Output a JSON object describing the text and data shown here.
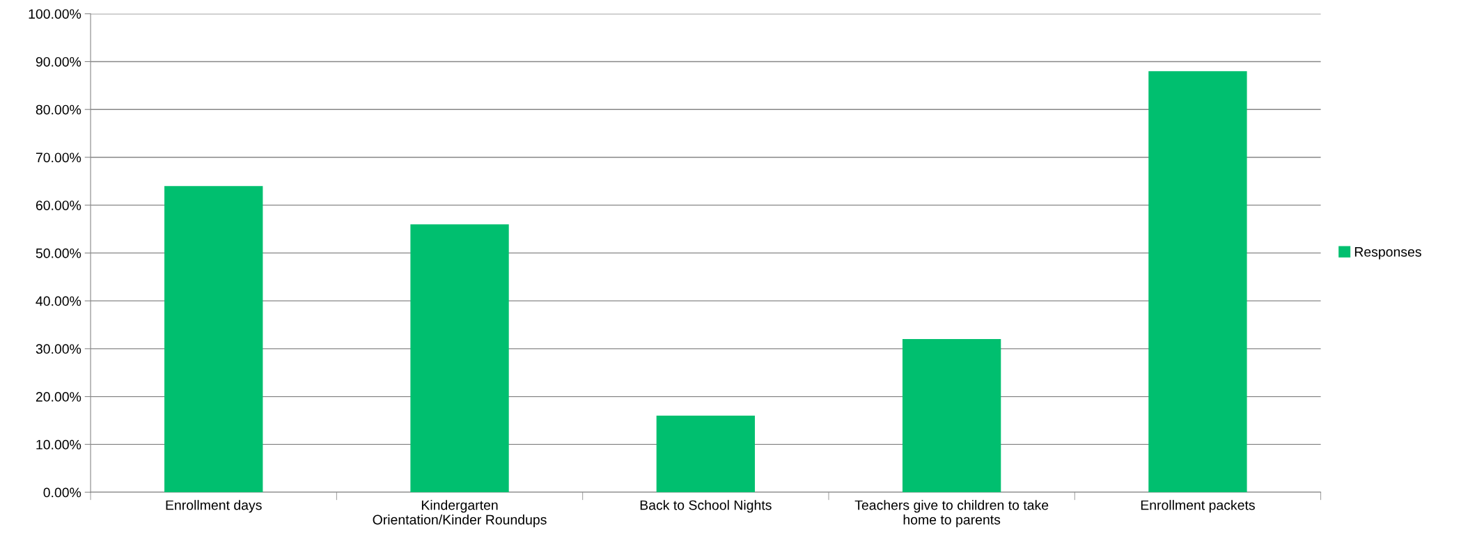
{
  "chart_data": {
    "type": "bar",
    "categories": [
      "Enrollment days",
      "Kindergarten\nOrientation/Kinder Roundups",
      "Back to School Nights",
      "Teachers give to children to take\nhome to parents",
      "Enrollment packets"
    ],
    "series": [
      {
        "name": "Responses",
        "color": "#00bf6f",
        "values": [
          64,
          56,
          16,
          32,
          88
        ]
      }
    ],
    "ylim": [
      0,
      100
    ],
    "yticks": [
      {
        "value": 0,
        "label": "0.00%"
      },
      {
        "value": 10,
        "label": "10.00%"
      },
      {
        "value": 20,
        "label": "20.00%"
      },
      {
        "value": 30,
        "label": "30.00%"
      },
      {
        "value": 40,
        "label": "40.00%"
      },
      {
        "value": 50,
        "label": "50.00%"
      },
      {
        "value": 60,
        "label": "60.00%"
      },
      {
        "value": 70,
        "label": "70.00%"
      },
      {
        "value": 80,
        "label": "80.00%"
      },
      {
        "value": 90,
        "label": "90.00%"
      },
      {
        "value": 100,
        "label": "100.00%"
      }
    ],
    "grid": "y",
    "legend": "right"
  }
}
